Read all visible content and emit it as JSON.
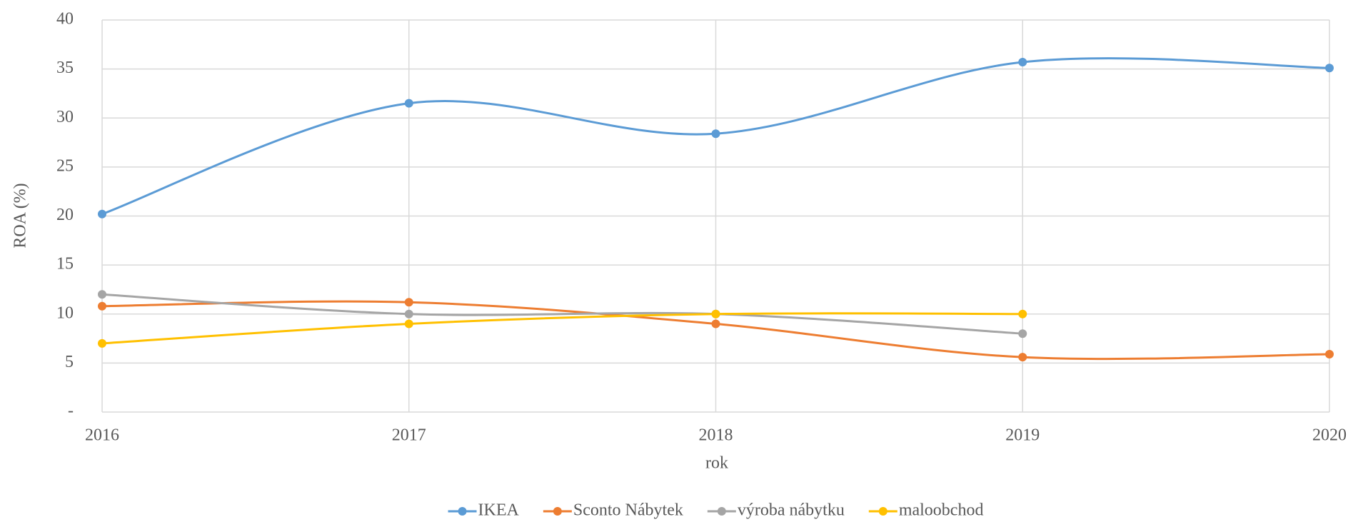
{
  "chart_data": {
    "type": "line",
    "smooth": true,
    "x_label": "rok",
    "y_label": "ROA (%)",
    "categories": [
      "2016",
      "2017",
      "2018",
      "2019",
      "2020"
    ],
    "series": [
      {
        "name": "IKEA",
        "color": "#5b9bd5",
        "values": [
          20.2,
          31.5,
          28.4,
          35.7,
          35.1
        ]
      },
      {
        "name": "Sconto Nábytek",
        "color": "#ed7d31",
        "values": [
          10.8,
          11.2,
          9.0,
          5.6,
          5.9
        ]
      },
      {
        "name": "výroba nábytku",
        "color": "#a5a5a5",
        "values": [
          12,
          10,
          10,
          8,
          null
        ]
      },
      {
        "name": "maloobchod",
        "color": "#ffc000",
        "values": [
          7,
          9,
          10,
          10,
          null
        ]
      }
    ],
    "ylim": [
      0,
      40
    ],
    "yticks": [
      {
        "value": 0,
        "label": "-"
      },
      5,
      10,
      15,
      20,
      25,
      30,
      35,
      40
    ],
    "grid": true,
    "legend": "bottom"
  }
}
